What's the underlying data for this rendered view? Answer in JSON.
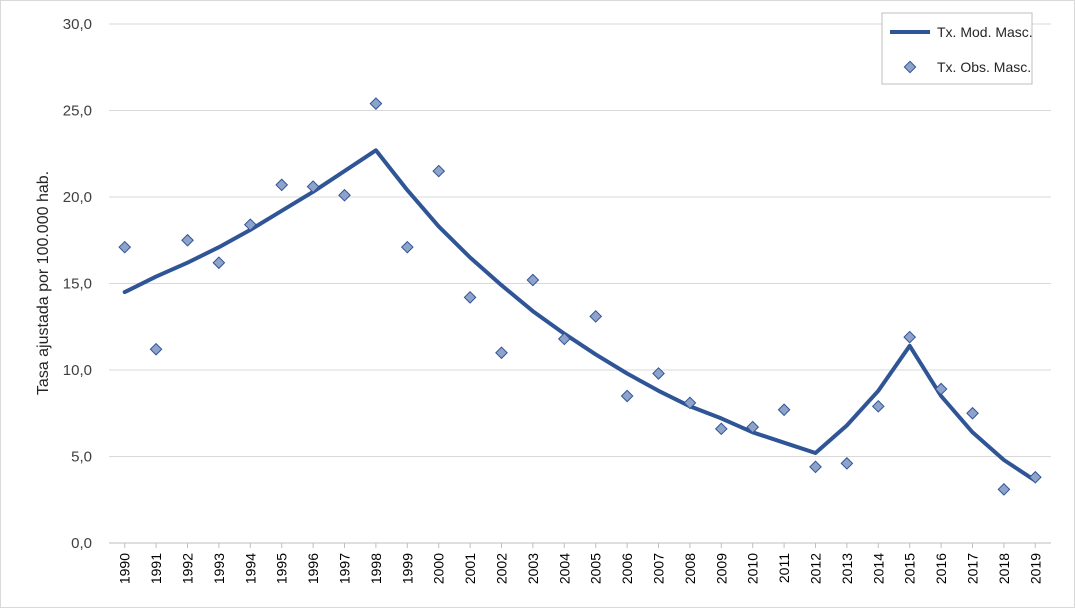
{
  "chart_data": {
    "type": "line",
    "title": "",
    "xlabel": "",
    "ylabel": "Tasa ajustada por 100.000 hab.",
    "ylim": [
      0,
      30
    ],
    "yticks": [
      "0,0",
      "5,0",
      "10,0",
      "15,0",
      "20,0",
      "25,0",
      "30,0"
    ],
    "grid": true,
    "legend_position": "top-right",
    "categories": [
      "1990",
      "1991",
      "1992",
      "1993",
      "1994",
      "1995",
      "1996",
      "1997",
      "1998",
      "1999",
      "2000",
      "2001",
      "2002",
      "2003",
      "2004",
      "2005",
      "2006",
      "2007",
      "2008",
      "2009",
      "2010",
      "2011",
      "2012",
      "2013",
      "2014",
      "2015",
      "2016",
      "2017",
      "2018",
      "2019"
    ],
    "series": [
      {
        "name": "Tx. Mod. Masc.",
        "kind": "line",
        "color": "#2F5597",
        "values": [
          14.5,
          15.4,
          16.2,
          17.1,
          18.1,
          19.2,
          20.3,
          21.5,
          22.7,
          20.4,
          18.3,
          16.5,
          14.9,
          13.4,
          12.1,
          10.9,
          9.8,
          8.8,
          7.9,
          7.2,
          6.4,
          5.8,
          5.2,
          6.8,
          8.8,
          11.4,
          8.5,
          6.4,
          4.8,
          3.6
        ]
      },
      {
        "name": "Tx. Obs. Masc.",
        "kind": "scatter",
        "color": "#8FA2C9",
        "values": [
          17.1,
          11.2,
          17.5,
          16.2,
          18.4,
          20.7,
          20.6,
          20.1,
          25.4,
          17.1,
          21.5,
          14.2,
          11.0,
          15.2,
          11.8,
          13.1,
          8.5,
          9.8,
          8.1,
          6.6,
          6.7,
          7.7,
          4.4,
          4.6,
          7.9,
          11.9,
          8.9,
          7.5,
          3.1,
          3.8
        ]
      }
    ]
  }
}
